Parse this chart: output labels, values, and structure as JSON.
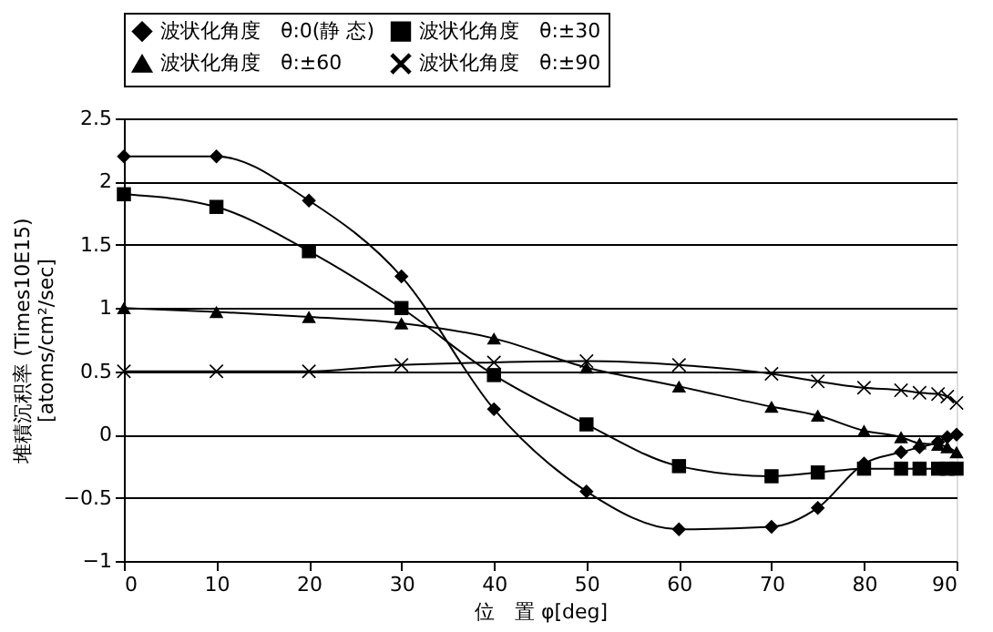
{
  "chart_data": {
    "type": "line",
    "xlabel": "位　置 φ[deg]",
    "ylabel": "堆積沉积率 (Times10E15)\n[atoms/cm²/sec]",
    "x": [
      0,
      10,
      20,
      30,
      40,
      50,
      60,
      70,
      75,
      80,
      84,
      86,
      88,
      89,
      90
    ],
    "series": [
      {
        "name": "波状化角度　θ:0(静 态)",
        "color": "#000000",
        "marker": "diamond",
        "values": [
          2.2,
          2.2,
          1.85,
          1.25,
          0.2,
          -0.45,
          -0.75,
          -0.73,
          -0.58,
          -0.23,
          -0.14,
          -0.1,
          -0.06,
          -0.02,
          0.0
        ]
      },
      {
        "name": "波状化角度　θ:±30",
        "color": "#000000",
        "marker": "square",
        "values": [
          1.9,
          1.8,
          1.45,
          1.0,
          0.47,
          0.08,
          -0.25,
          -0.33,
          -0.3,
          -0.27,
          -0.27,
          -0.27,
          -0.27,
          -0.27,
          -0.27
        ]
      },
      {
        "name": "波状化角度　θ:±60",
        "color": "#000000",
        "marker": "triangle",
        "values": [
          1.0,
          0.97,
          0.93,
          0.88,
          0.76,
          0.53,
          0.38,
          0.22,
          0.15,
          0.03,
          -0.02,
          -0.07,
          -0.08,
          -0.1,
          -0.14
        ]
      },
      {
        "name": "波状化角度　θ:±90",
        "color": "#000000",
        "marker": "cross",
        "values": [
          0.5,
          0.5,
          0.5,
          0.55,
          0.57,
          0.58,
          0.55,
          0.48,
          0.42,
          0.37,
          0.35,
          0.33,
          0.32,
          0.3,
          0.25
        ]
      }
    ],
    "xlim": [
      0,
      90
    ],
    "xticks": [
      0,
      10,
      20,
      30,
      40,
      50,
      60,
      70,
      80,
      90
    ],
    "ylim": [
      -1,
      2.5
    ],
    "yticks": [
      -1,
      -0.5,
      0,
      0.5,
      1,
      1.5,
      2,
      2.5
    ],
    "grid": "y",
    "legend": "top",
    "line_style": "solid"
  }
}
